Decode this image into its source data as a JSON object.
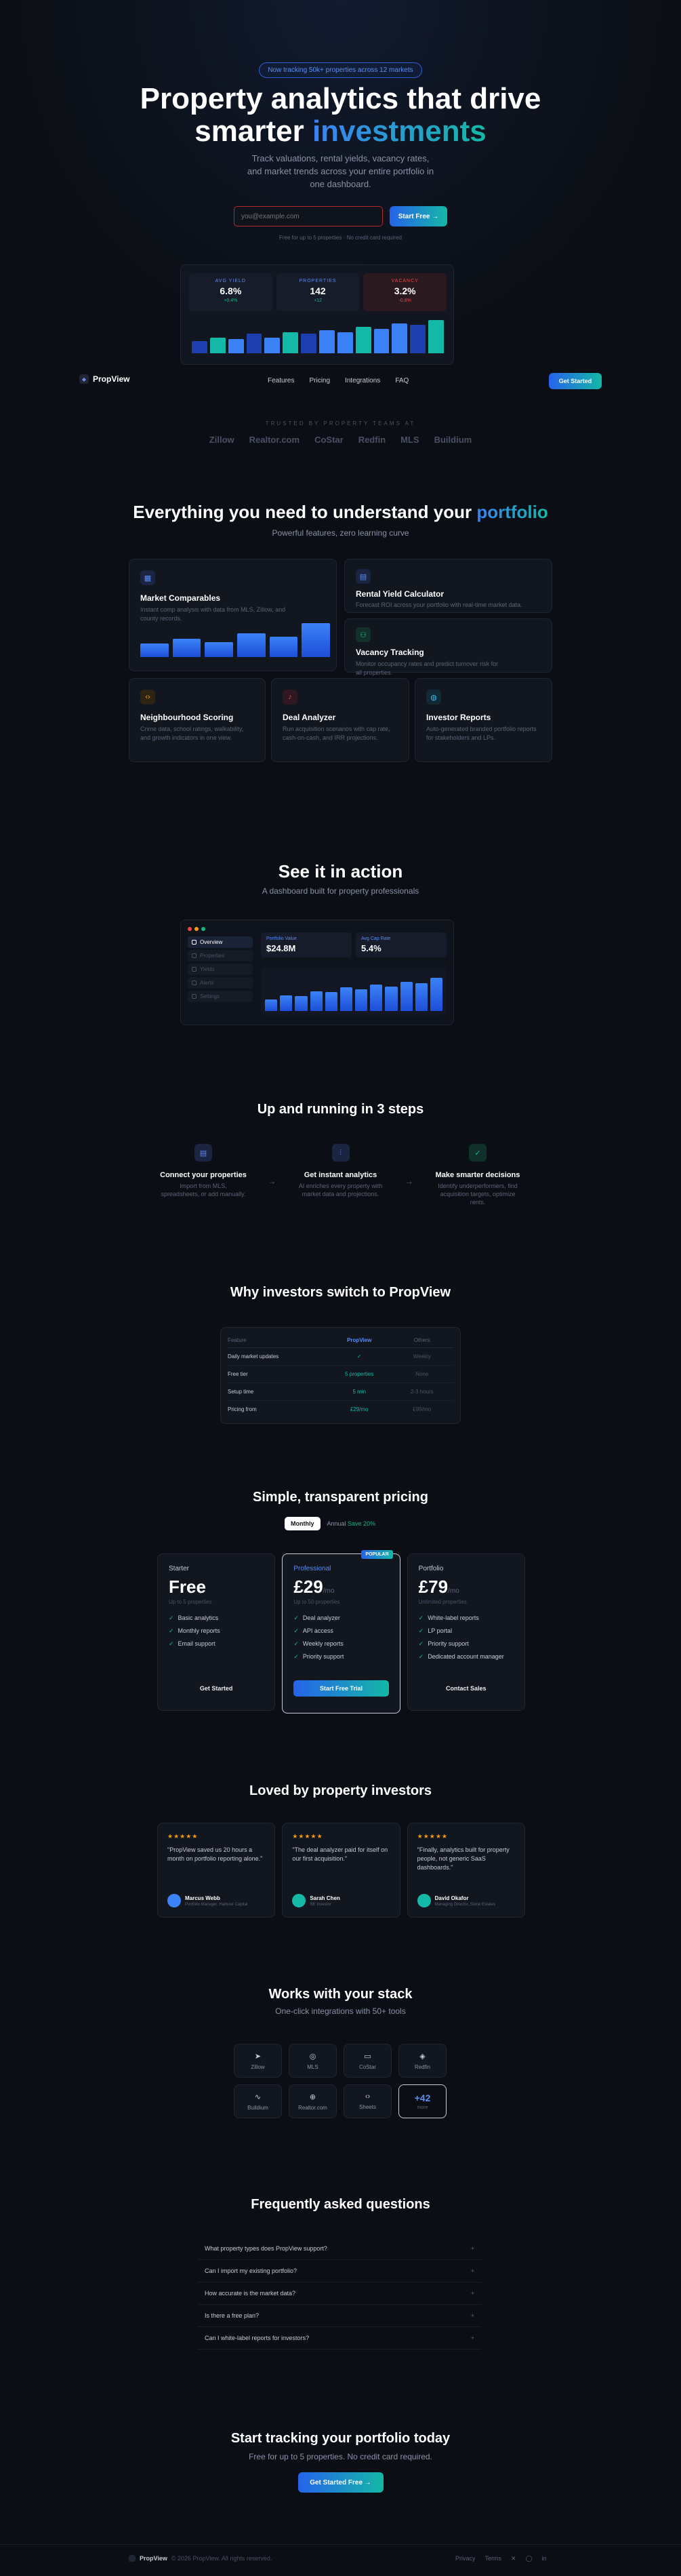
{
  "hero": {
    "badge": "Now tracking 50k+ properties across 12 markets",
    "title_part1": "Property analytics that drive",
    "title_part2": "smarter",
    "title_accent": "investments",
    "subtitle": "Track valuations, rental yields, vacancy rates, and market trends across your entire portfolio in one dashboard.",
    "email_placeholder": "you@example.com",
    "cta": "Start Free →",
    "note": "Free for up to 5 properties · No credit card required"
  },
  "preview": {
    "stats": [
      {
        "label": "AVG YIELD",
        "value": "6.8%",
        "delta": "+0.4%",
        "color": "#10b981"
      },
      {
        "label": "PROPERTIES",
        "value": "142",
        "delta": "+12",
        "color": "#10b981"
      },
      {
        "label": "VACANCY",
        "value": "3.2%",
        "delta": "-0.8%",
        "color": "#ef4444"
      }
    ],
    "bars": [
      0.35,
      0.45,
      0.4,
      0.55,
      0.45,
      0.6,
      0.55,
      0.65,
      0.6,
      0.75,
      0.7,
      0.85,
      0.8,
      0.95
    ]
  },
  "nav": {
    "logo": "PropView",
    "links": [
      "Features",
      "Pricing",
      "Integrations",
      "FAQ"
    ],
    "cta": "Get Started"
  },
  "trusted": {
    "label": "TRUSTED BY PROPERTY TEAMS AT",
    "logos": [
      "Zillow",
      "Realtor.com",
      "CoStar",
      "Redfin",
      "MLS",
      "Buildium"
    ]
  },
  "features": {
    "title_main": "Everything you need to understand your",
    "title_accent": "portfolio",
    "subtitle": "Powerful features, zero learning curve",
    "items": [
      {
        "name": "Market Comparables",
        "desc": "Instant comp analysis with data from MLS, Zillow, and county records."
      },
      {
        "name": "Rental Yield Calculator",
        "desc": "Forecast ROI across your portfolio with real-time market data."
      },
      {
        "name": "Vacancy Tracking",
        "desc": "Monitor occupancy rates and predict turnover risk for all properties."
      },
      {
        "name": "Neighbourhood Scoring",
        "desc": "Crime data, school ratings, walkability, and growth indicators in one view."
      },
      {
        "name": "Deal Analyzer",
        "desc": "Run acquisition scenarios with cap rate, cash-on-cash, and IRR projections."
      },
      {
        "name": "Investor Reports",
        "desc": "Auto-generated branded portfolio reports for stakeholders and LPs."
      }
    ],
    "bars": [
      0.4,
      0.55,
      0.45,
      0.7,
      0.6,
      1.0
    ]
  },
  "demo": {
    "title": "See it in action",
    "subtitle": "A dashboard built for property professionals",
    "menu": [
      "Overview",
      "Properties",
      "Yields",
      "Alerts",
      "Settings"
    ],
    "stats": [
      {
        "label": "Portfolio Value",
        "value": "$24.8M"
      },
      {
        "label": "Avg Cap Rate",
        "value": "5.4%"
      }
    ],
    "bars": [
      0.3,
      0.4,
      0.38,
      0.5,
      0.48,
      0.6,
      0.55,
      0.68,
      0.62,
      0.75,
      0.7,
      0.85
    ]
  },
  "steps": {
    "title": "Up and running in 3 steps",
    "items": [
      {
        "name": "Connect your properties",
        "desc": "Import from MLS, spreadsheets, or add manually."
      },
      {
        "name": "Get instant analytics",
        "desc": "AI enriches every property with market data and projections."
      },
      {
        "name": "Make smarter decisions",
        "desc": "Identify underperformers, find acquisition targets, optimize rents."
      }
    ]
  },
  "compare": {
    "title": "Why investors switch to PropView",
    "headers": [
      "Feature",
      "PropView",
      "Others"
    ],
    "rows": [
      [
        "Daily market updates",
        "✓",
        "Weekly"
      ],
      [
        "Free tier",
        "5 properties",
        "None"
      ],
      [
        "Setup time",
        "5 min",
        "2-3 hours"
      ],
      [
        "Pricing from",
        "£29/mo",
        "£99/mo"
      ]
    ]
  },
  "pricing": {
    "title": "Simple, transparent pricing",
    "toggle_monthly": "Monthly",
    "toggle_annual": "Annual",
    "save": "Save 20%",
    "plans": [
      {
        "name": "Starter",
        "price": "Free",
        "period": "",
        "desc": "Up to 5 properties",
        "features": [
          "Basic analytics",
          "Monthly reports",
          "Email support"
        ],
        "cta": "Get Started",
        "featured": false
      },
      {
        "name": "Professional",
        "price": "£29",
        "period": "/mo",
        "desc": "Up to 50 properties",
        "features": [
          "Deal analyzer",
          "API access",
          "Weekly reports",
          "Priority support"
        ],
        "cta": "Start Free Trial",
        "featured": true,
        "badge": "POPULAR"
      },
      {
        "name": "Portfolio",
        "price": "£79",
        "period": "/mo",
        "desc": "Unlimited properties",
        "features": [
          "White-label reports",
          "LP portal",
          "Priority support",
          "Dedicated account manager"
        ],
        "cta": "Contact Sales",
        "featured": false
      }
    ]
  },
  "testimonials": {
    "title": "Loved by property investors",
    "stars": "★★★★★",
    "items": [
      {
        "quote": "\"PropView saved us 20 hours a month on portfolio reporting alone.\"",
        "name": "Marcus Webb",
        "role": "Portfolio Manager, Harbour Capital",
        "color": "#3b82f6"
      },
      {
        "quote": "\"The deal analyzer paid for itself on our first acquisition.\"",
        "name": "Sarah Chen",
        "role": "RE Investor",
        "color": "#14b8a6"
      },
      {
        "quote": "\"Finally, analytics built for property people, not generic SaaS dashboards.\"",
        "name": "David Okafor",
        "role": "Managing Director, Stone Estates",
        "color": "#14b8a6"
      }
    ]
  },
  "integrations": {
    "title": "Works with your stack",
    "subtitle": "One-click integrations with 50+ tools",
    "items": [
      {
        "name": "Zillow",
        "icon": "➤"
      },
      {
        "name": "MLS",
        "icon": "◎"
      },
      {
        "name": "CoStar",
        "icon": "▭"
      },
      {
        "name": "Redfin",
        "icon": "◈"
      },
      {
        "name": "Buildium",
        "icon": "∿"
      },
      {
        "name": "Realtor.com",
        "icon": "⊕"
      },
      {
        "name": "Sheets",
        "icon": "‹›"
      }
    ],
    "more_count": "+42",
    "more_label": "more"
  },
  "faq": {
    "title": "Frequently asked questions",
    "items": [
      "What property types does PropView support?",
      "Can I import my existing portfolio?",
      "How accurate is the market data?",
      "Is there a free plan?",
      "Can I white-label reports for investors?"
    ]
  },
  "final_cta": {
    "title": "Start tracking your portfolio today",
    "subtitle": "Free for up to 5 properties. No credit card required.",
    "cta": "Get Started Free →"
  },
  "footer": {
    "logo": "PropView",
    "copyright": "© 2026 PropView. All rights reserved.",
    "links": [
      "Privacy",
      "Terms"
    ]
  }
}
